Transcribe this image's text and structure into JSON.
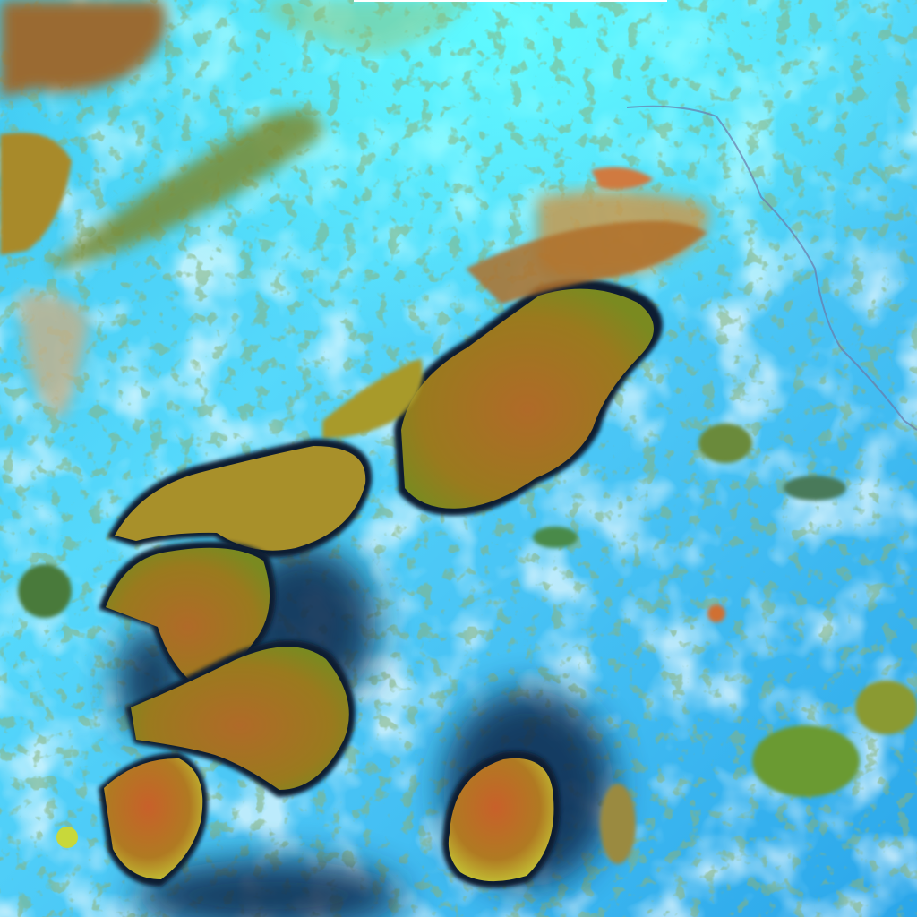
{
  "image": {
    "kind": "false-color satellite imagery",
    "colors": {
      "clear_sky_cyan": "#4fe3ff",
      "ground_blue": "#2fb0f0",
      "haze_white": "#bff4ff",
      "cloud_olive": "#a07a1e",
      "cloud_orange": "#c8602a",
      "cloud_yellow_edge": "#c8d83a",
      "cloud_shadow": "#0a2040",
      "green_fringe": "#3a7a3a"
    },
    "features": [
      "large-storm-cloud-center",
      "storm-cloud-band-southwest",
      "storm-cloud-south",
      "cloud-band-northwest",
      "cloud-cluster-northeast",
      "scattered-cumulus-east",
      "border-line-northeast"
    ]
  }
}
